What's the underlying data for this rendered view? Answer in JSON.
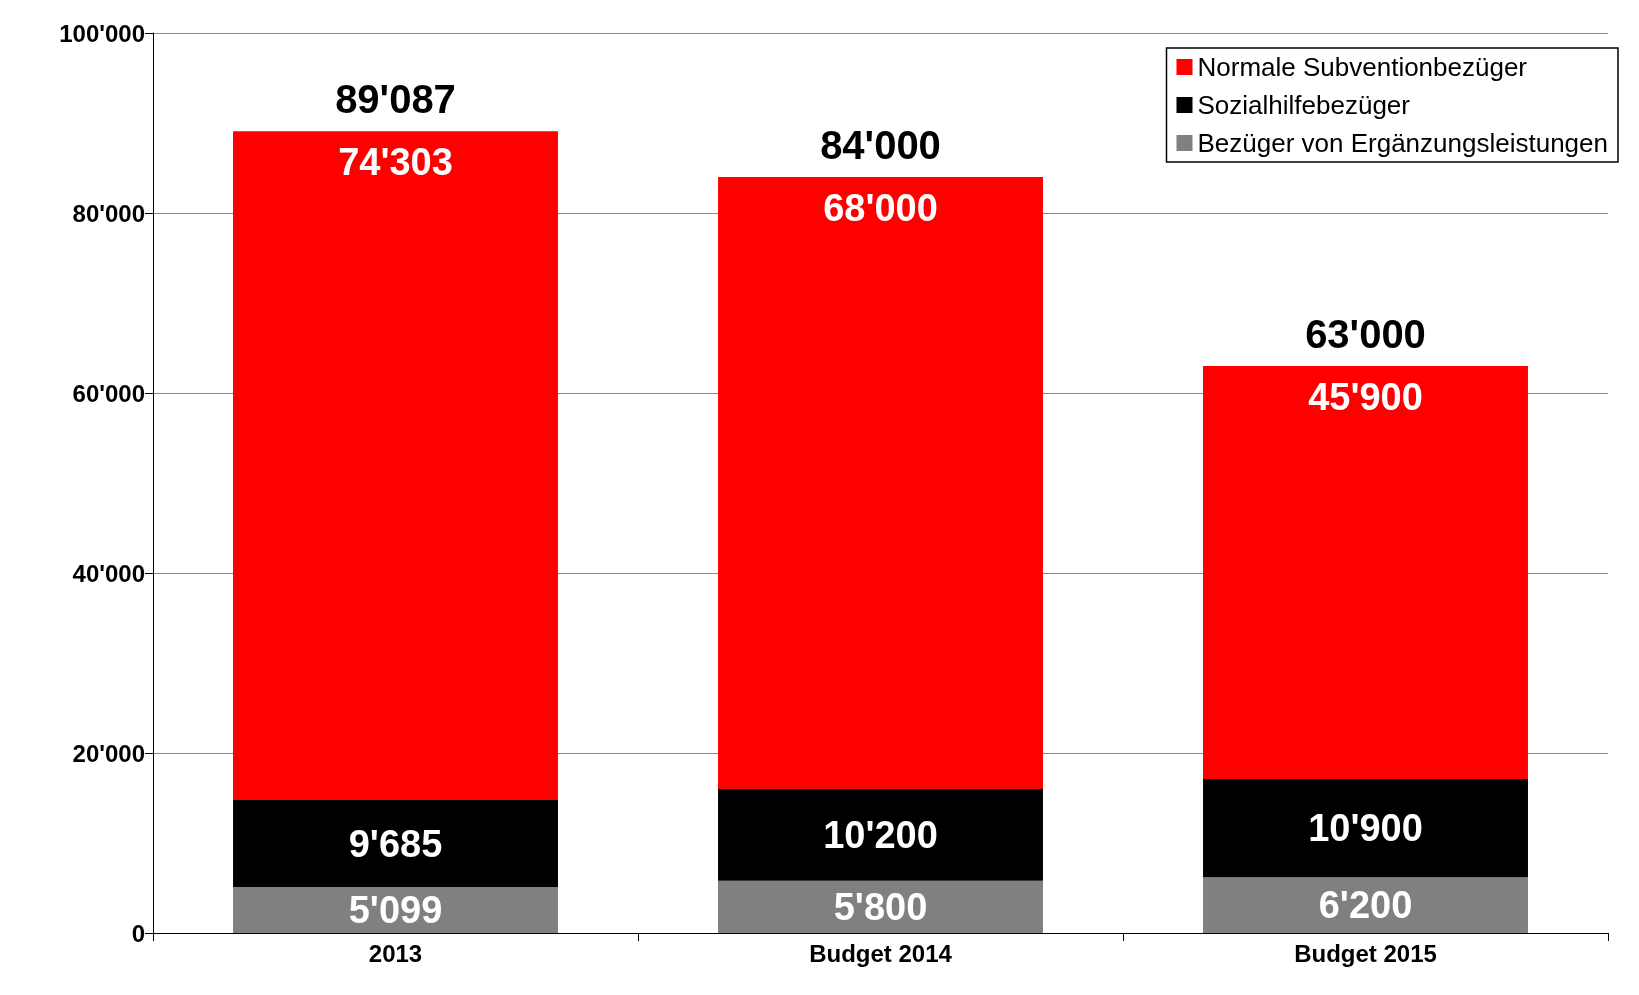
{
  "chart_data": {
    "type": "bar",
    "stacked": true,
    "categories": [
      "2013",
      "Budget 2014",
      "Budget 2015"
    ],
    "series": [
      {
        "name": "Bezüger von Ergänzungsleistungen",
        "color": "#808080",
        "values": [
          5099,
          5800,
          6200
        ],
        "value_labels": [
          "5'099",
          "5'800",
          "6'200"
        ]
      },
      {
        "name": "Sozialhilfebezüger",
        "color": "#000000",
        "values": [
          9685,
          10200,
          10900
        ],
        "value_labels": [
          "9'685",
          "10'200",
          "10'900"
        ]
      },
      {
        "name": "Normale Subventionbezüger",
        "color": "#ff0000",
        "values": [
          74303,
          68000,
          45900
        ],
        "value_labels": [
          "74'303",
          "68'000",
          "45'900"
        ]
      }
    ],
    "totals": [
      "89'087",
      "84'000",
      "63'000"
    ],
    "ylim": [
      0,
      100000
    ],
    "yticks": [
      {
        "value": 0,
        "label": "0"
      },
      {
        "value": 20000,
        "label": "20'000"
      },
      {
        "value": 40000,
        "label": "40'000"
      },
      {
        "value": 60000,
        "label": "60'000"
      },
      {
        "value": 80000,
        "label": "80'000"
      },
      {
        "value": 100000,
        "label": "100'000"
      }
    ],
    "grid": "y",
    "legend": "top right"
  }
}
